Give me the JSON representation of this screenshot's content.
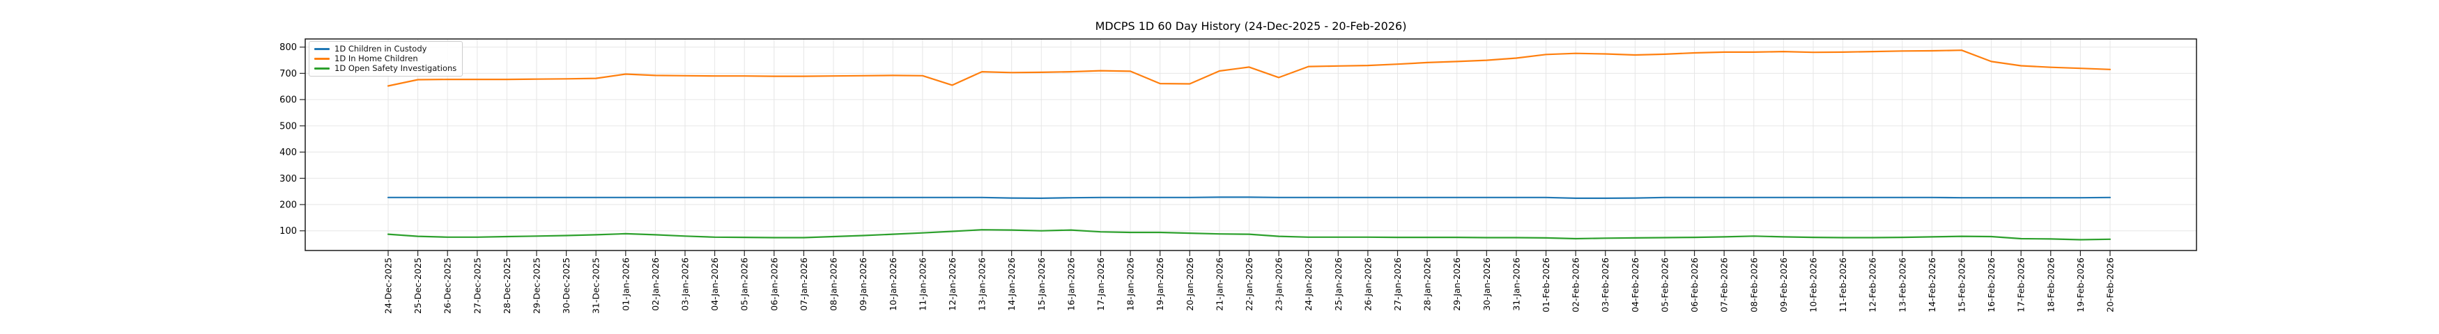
{
  "title": "MDCPS 1D 60 Day History (24-Dec-2025 - 20-Feb-2026)",
  "chart_data": {
    "type": "line",
    "title": "MDCPS 1D 60 Day History (24-Dec-2025 - 20-Feb-2026)",
    "xlabel": "",
    "ylabel": "",
    "grid": true,
    "legend_position": "upper left",
    "ylim": [
      25,
      831
    ],
    "y_ticks": [
      100,
      200,
      300,
      400,
      500,
      600,
      700,
      800
    ],
    "x_labels": [
      "24-Dec-2025",
      "25-Dec-2025",
      "26-Dec-2025",
      "27-Dec-2025",
      "28-Dec-2025",
      "29-Dec-2025",
      "30-Dec-2025",
      "31-Dec-2025",
      "01-Jan-2026",
      "02-Jan-2026",
      "03-Jan-2026",
      "04-Jan-2026",
      "05-Jan-2026",
      "06-Jan-2026",
      "07-Jan-2026",
      "08-Jan-2026",
      "09-Jan-2026",
      "10-Jan-2026",
      "11-Jan-2026",
      "12-Jan-2026",
      "13-Jan-2026",
      "14-Jan-2026",
      "15-Jan-2026",
      "16-Jan-2026",
      "17-Jan-2026",
      "18-Jan-2026",
      "19-Jan-2026",
      "20-Jan-2026",
      "21-Jan-2026",
      "22-Jan-2026",
      "23-Jan-2026",
      "24-Jan-2026",
      "25-Jan-2026",
      "26-Jan-2026",
      "27-Jan-2026",
      "28-Jan-2026",
      "29-Jan-2026",
      "30-Jan-2026",
      "31-Jan-2026",
      "01-Feb-2026",
      "02-Feb-2026",
      "03-Feb-2026",
      "04-Feb-2026",
      "05-Feb-2026",
      "06-Feb-2026",
      "07-Feb-2026",
      "08-Feb-2026",
      "09-Feb-2026",
      "10-Feb-2026",
      "11-Feb-2026",
      "12-Feb-2026",
      "13-Feb-2026",
      "14-Feb-2026",
      "15-Feb-2026",
      "16-Feb-2026",
      "17-Feb-2026",
      "18-Feb-2026",
      "19-Feb-2026",
      "20-Feb-2026"
    ],
    "series": [
      {
        "name": "1D Children in Custody",
        "color": "#1f77b4",
        "values": [
          227,
          227,
          227,
          227,
          227,
          227,
          227,
          227,
          227,
          227,
          227,
          227,
          227,
          227,
          227,
          227,
          227,
          227,
          227,
          227,
          227,
          225,
          224,
          226,
          227,
          227,
          227,
          227,
          228,
          228,
          227,
          227,
          227,
          227,
          227,
          227,
          227,
          227,
          227,
          227,
          224,
          224,
          225,
          227,
          227,
          227,
          227,
          227,
          227,
          227,
          227,
          227,
          227,
          226,
          226,
          226,
          226,
          226,
          227
        ]
      },
      {
        "name": "1D In Home Children",
        "color": "#ff7f0e",
        "values": [
          652,
          676,
          677,
          677,
          677,
          678,
          679,
          681,
          697,
          692,
          691,
          690,
          690,
          689,
          689,
          690,
          691,
          692,
          691,
          655,
          706,
          703,
          704,
          706,
          710,
          708,
          661,
          660,
          709,
          724,
          684,
          726,
          728,
          730,
          735,
          741,
          745,
          750,
          758,
          772,
          776,
          774,
          770,
          773,
          778,
          781,
          781,
          783,
          780,
          781,
          783,
          785,
          786,
          788,
          745,
          729,
          723,
          719,
          715
        ]
      },
      {
        "name": "1D Open Safety Investigations",
        "color": "#2ca02c",
        "values": [
          87,
          79,
          76,
          76,
          78,
          80,
          82,
          85,
          89,
          85,
          80,
          76,
          75,
          74,
          74,
          78,
          82,
          87,
          92,
          98,
          104,
          103,
          100,
          103,
          96,
          94,
          94,
          91,
          88,
          87,
          79,
          76,
          76,
          76,
          75,
          75,
          75,
          74,
          74,
          73,
          70,
          72,
          73,
          74,
          75,
          77,
          80,
          77,
          75,
          74,
          74,
          75,
          77,
          79,
          78,
          70,
          69,
          66,
          68
        ]
      }
    ]
  }
}
